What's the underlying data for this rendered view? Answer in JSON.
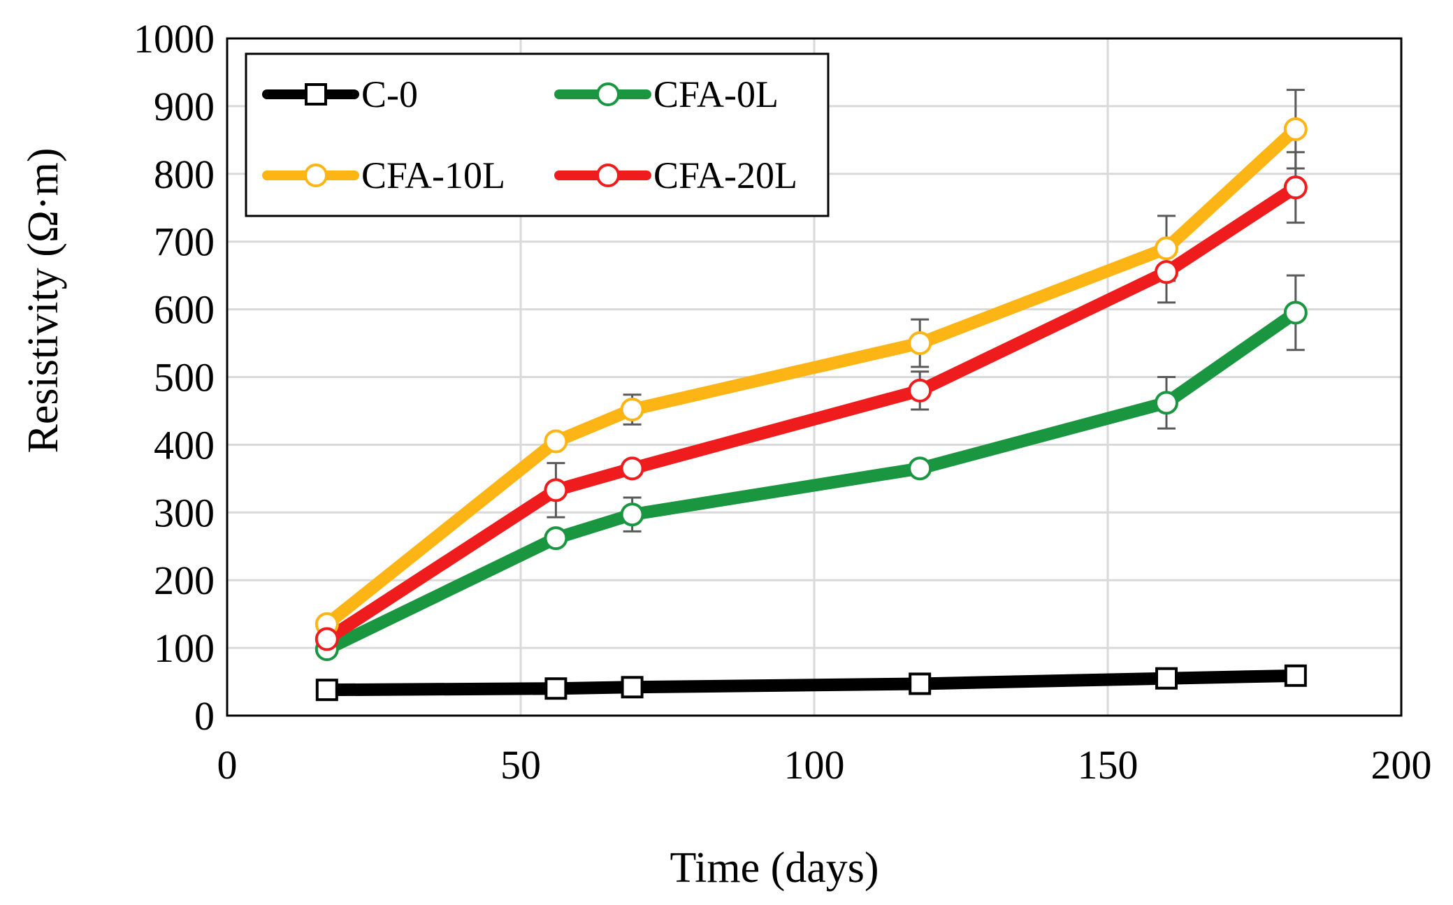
{
  "chart_data": {
    "type": "line",
    "title": "",
    "xlabel": "Time (days)",
    "ylabel": "Resistivity (Ω·m)",
    "xlim": [
      0,
      200
    ],
    "ylim": [
      0,
      1000
    ],
    "xticks": [
      0,
      50,
      100,
      150,
      200
    ],
    "yticks": [
      0,
      100,
      200,
      300,
      400,
      500,
      600,
      700,
      800,
      900,
      1000
    ],
    "grid": true,
    "legend_position": "top-left",
    "x": [
      17,
      56,
      69,
      118,
      160,
      182
    ],
    "series": [
      {
        "name": "C-0",
        "color": "#000000",
        "marker": "square",
        "values": [
          38,
          40,
          42,
          47,
          55,
          59
        ],
        "errors": [
          0,
          0,
          0,
          0,
          0,
          0
        ]
      },
      {
        "name": "CFA-0L",
        "color": "#1a9641",
        "marker": "circle",
        "values": [
          98,
          262,
          297,
          365,
          462,
          595
        ],
        "errors": [
          5,
          10,
          25,
          8,
          38,
          55
        ]
      },
      {
        "name": "CFA-10L",
        "color": "#fdb515",
        "marker": "circle",
        "values": [
          135,
          405,
          452,
          550,
          690,
          866
        ],
        "errors": [
          0,
          0,
          22,
          35,
          48,
          58
        ]
      },
      {
        "name": "CFA-20L",
        "color": "#ee1c1c",
        "marker": "circle",
        "values": [
          113,
          333,
          365,
          480,
          655,
          780
        ],
        "errors": [
          0,
          40,
          0,
          28,
          45,
          52
        ]
      }
    ]
  }
}
